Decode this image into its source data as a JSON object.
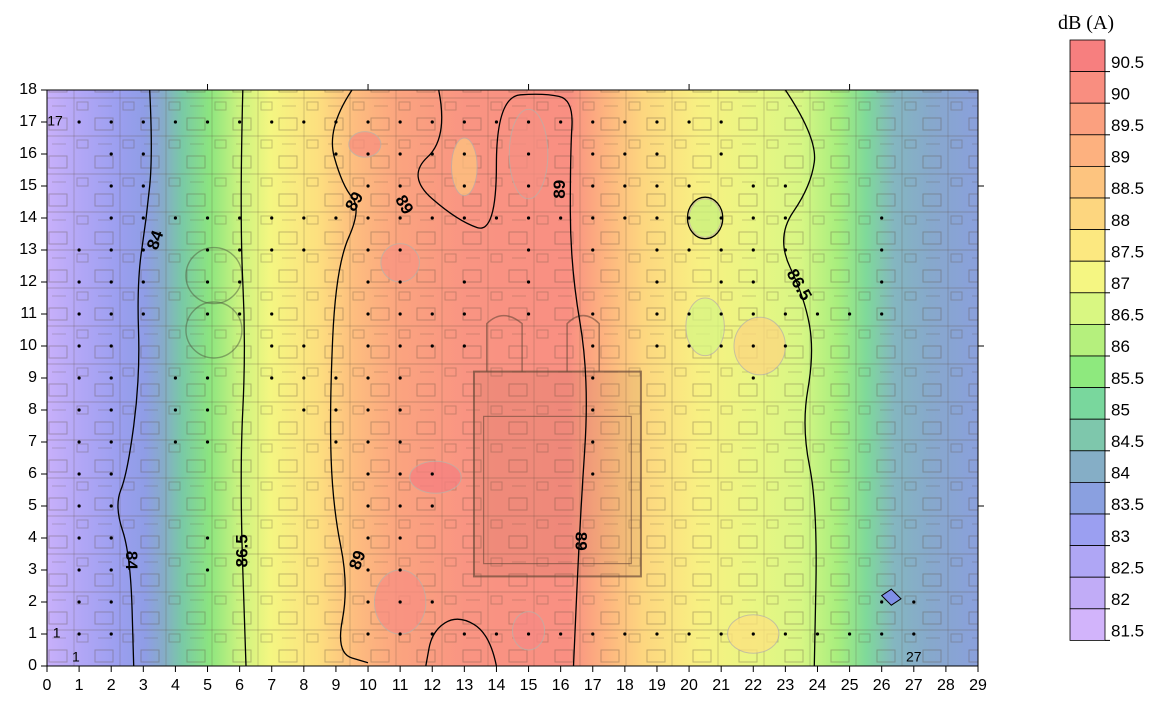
{
  "chart_data": {
    "type": "heatmap",
    "title": "",
    "colorbar_title": "dB (A)",
    "xlim": [
      0,
      29
    ],
    "ylim": [
      0,
      18
    ],
    "x_ticks": [
      0,
      1,
      2,
      3,
      4,
      5,
      6,
      7,
      8,
      9,
      10,
      11,
      12,
      13,
      14,
      15,
      16,
      17,
      18,
      19,
      20,
      21,
      22,
      23,
      24,
      25,
      26,
      27,
      28,
      29
    ],
    "y_ticks": [
      0,
      1,
      2,
      3,
      4,
      5,
      6,
      7,
      8,
      9,
      10,
      11,
      12,
      13,
      14,
      15,
      16,
      17,
      18
    ],
    "colorbar_levels": [
      {
        "label": "90.5",
        "color": "#f77f7f"
      },
      {
        "label": "90",
        "color": "#f98e80"
      },
      {
        "label": "89.5",
        "color": "#fba07f"
      },
      {
        "label": "89",
        "color": "#fdb17f"
      },
      {
        "label": "88.5",
        "color": "#fdc47f"
      },
      {
        "label": "88",
        "color": "#fdd67f"
      },
      {
        "label": "87.5",
        "color": "#fce880"
      },
      {
        "label": "87",
        "color": "#f5f682"
      },
      {
        "label": "86.5",
        "color": "#d9f782"
      },
      {
        "label": "86",
        "color": "#b5f07d"
      },
      {
        "label": "85.5",
        "color": "#8ee97e"
      },
      {
        "label": "85",
        "color": "#79d79d"
      },
      {
        "label": "84.5",
        "color": "#7ec7ac"
      },
      {
        "label": "84",
        "color": "#85aec6"
      },
      {
        "label": "83.5",
        "color": "#8aa0e0"
      },
      {
        "label": "83",
        "color": "#9b9ff1"
      },
      {
        "label": "82.5",
        "color": "#afa6f5"
      },
      {
        "label": "82",
        "color": "#c1acf7"
      },
      {
        "label": "81.5",
        "color": "#d2b4fb"
      }
    ],
    "contour_labels": [
      {
        "text": "84",
        "x": 3.4,
        "y": 13.3,
        "angle": -70
      },
      {
        "text": "84",
        "x": 2.6,
        "y": 3.3,
        "angle": 90
      },
      {
        "text": "86.5",
        "x": 6.1,
        "y": 3.6,
        "angle": -90
      },
      {
        "text": "89",
        "x": 9.6,
        "y": 14.5,
        "angle": -60
      },
      {
        "text": "89",
        "x": 11.1,
        "y": 14.4,
        "angle": 60
      },
      {
        "text": "89",
        "x": 9.7,
        "y": 3.3,
        "angle": -70
      },
      {
        "text": "89",
        "x": 16.0,
        "y": 14.9,
        "angle": -90
      },
      {
        "text": "89",
        "x": 16.6,
        "y": 3.9,
        "angle": 90
      },
      {
        "text": "86.5",
        "x": 23.4,
        "y": 11.9,
        "angle": 60
      }
    ],
    "point_labels": [
      {
        "text": "17",
        "x": 0.25,
        "y": 17.0
      },
      {
        "text": "1",
        "x": 0.3,
        "y": 1.0
      },
      {
        "text": "1",
        "x": 0.9,
        "y": 0.25
      },
      {
        "text": "27",
        "x": 27.0,
        "y": 0.25
      }
    ],
    "measurement_points": [
      [
        1,
        17
      ],
      [
        2,
        17
      ],
      [
        3,
        17
      ],
      [
        4,
        17
      ],
      [
        5,
        17
      ],
      [
        6,
        17
      ],
      [
        7,
        17
      ],
      [
        8,
        17
      ],
      [
        9,
        17
      ],
      [
        10,
        17
      ],
      [
        11,
        17
      ],
      [
        12,
        17
      ],
      [
        13,
        17
      ],
      [
        14,
        17
      ],
      [
        15,
        17
      ],
      [
        16,
        17
      ],
      [
        17,
        17
      ],
      [
        18,
        17
      ],
      [
        19,
        17
      ],
      [
        20,
        17
      ],
      [
        21,
        17
      ],
      [
        2,
        16
      ],
      [
        3,
        16
      ],
      [
        9,
        16
      ],
      [
        10,
        16
      ],
      [
        11,
        16
      ],
      [
        12,
        16
      ],
      [
        13,
        16
      ],
      [
        15,
        16
      ],
      [
        17,
        16
      ],
      [
        18,
        16
      ],
      [
        19,
        16
      ],
      [
        21,
        16
      ],
      [
        2,
        15
      ],
      [
        3,
        15
      ],
      [
        10,
        15
      ],
      [
        11,
        15
      ],
      [
        13,
        15
      ],
      [
        15,
        15
      ],
      [
        17,
        15
      ],
      [
        18,
        15
      ],
      [
        19,
        15
      ],
      [
        20,
        15
      ],
      [
        22,
        15
      ],
      [
        23,
        15
      ],
      [
        2,
        14
      ],
      [
        3,
        14
      ],
      [
        4,
        14
      ],
      [
        5,
        14
      ],
      [
        6,
        14
      ],
      [
        7,
        14
      ],
      [
        8,
        14
      ],
      [
        9,
        14
      ],
      [
        10,
        14
      ],
      [
        11,
        14
      ],
      [
        12,
        14
      ],
      [
        13,
        14
      ],
      [
        14,
        14
      ],
      [
        15,
        14
      ],
      [
        16,
        14
      ],
      [
        17,
        14
      ],
      [
        18,
        14
      ],
      [
        19,
        14
      ],
      [
        20,
        14
      ],
      [
        21,
        14
      ],
      [
        22,
        14
      ],
      [
        23,
        14
      ],
      [
        26,
        14
      ],
      [
        1,
        13
      ],
      [
        2,
        13
      ],
      [
        3,
        13
      ],
      [
        5,
        13
      ],
      [
        6,
        13
      ],
      [
        7,
        13
      ],
      [
        8,
        13
      ],
      [
        10,
        13
      ],
      [
        11,
        13
      ],
      [
        15,
        13
      ],
      [
        17,
        13
      ],
      [
        19,
        13
      ],
      [
        20,
        13
      ],
      [
        21,
        13
      ],
      [
        22,
        13
      ],
      [
        23,
        13
      ],
      [
        26,
        13
      ],
      [
        1,
        12
      ],
      [
        2,
        12
      ],
      [
        3,
        12
      ],
      [
        5,
        12
      ],
      [
        6,
        12
      ],
      [
        10,
        12
      ],
      [
        11,
        12
      ],
      [
        13,
        12
      ],
      [
        15,
        12
      ],
      [
        19,
        12
      ],
      [
        21,
        12
      ],
      [
        22,
        12
      ],
      [
        26,
        12
      ],
      [
        1,
        11
      ],
      [
        2,
        11
      ],
      [
        3,
        11
      ],
      [
        5,
        11
      ],
      [
        6,
        11
      ],
      [
        7,
        11
      ],
      [
        10,
        11
      ],
      [
        11,
        11
      ],
      [
        12,
        11
      ],
      [
        13,
        11
      ],
      [
        15,
        11
      ],
      [
        17,
        11
      ],
      [
        19,
        11
      ],
      [
        20,
        11
      ],
      [
        21,
        11
      ],
      [
        22,
        11
      ],
      [
        23,
        11
      ],
      [
        24,
        11
      ],
      [
        25,
        11
      ],
      [
        26,
        11
      ],
      [
        1,
        10
      ],
      [
        2,
        10
      ],
      [
        7,
        10
      ],
      [
        8,
        10
      ],
      [
        10,
        10
      ],
      [
        11,
        10
      ],
      [
        12,
        10
      ],
      [
        13,
        10
      ],
      [
        17,
        10
      ],
      [
        19,
        10
      ],
      [
        20,
        10
      ],
      [
        21,
        10
      ],
      [
        22,
        10
      ],
      [
        23,
        10
      ],
      [
        1,
        9
      ],
      [
        2,
        9
      ],
      [
        4,
        9
      ],
      [
        5,
        9
      ],
      [
        7,
        9
      ],
      [
        8,
        9
      ],
      [
        9,
        9
      ],
      [
        10,
        9
      ],
      [
        11,
        9
      ],
      [
        17,
        9
      ],
      [
        22,
        9
      ],
      [
        1,
        8
      ],
      [
        2,
        8
      ],
      [
        4,
        8
      ],
      [
        5,
        8
      ],
      [
        8,
        8
      ],
      [
        9,
        8
      ],
      [
        10,
        8
      ],
      [
        11,
        8
      ],
      [
        17,
        8
      ],
      [
        1,
        7
      ],
      [
        2,
        7
      ],
      [
        4,
        7
      ],
      [
        5,
        7
      ],
      [
        9,
        7
      ],
      [
        10,
        7
      ],
      [
        11,
        7
      ],
      [
        17,
        7
      ],
      [
        1,
        6
      ],
      [
        2,
        6
      ],
      [
        10,
        6
      ],
      [
        11,
        6
      ],
      [
        12,
        6
      ],
      [
        17,
        6
      ],
      [
        1,
        5
      ],
      [
        2,
        5
      ],
      [
        10,
        5
      ],
      [
        11,
        5
      ],
      [
        12,
        5
      ],
      [
        1,
        4
      ],
      [
        2,
        4
      ],
      [
        5,
        4
      ],
      [
        10,
        4
      ],
      [
        11,
        4
      ],
      [
        1,
        3
      ],
      [
        2,
        3
      ],
      [
        5,
        3
      ],
      [
        10,
        3
      ],
      [
        11,
        3
      ],
      [
        1,
        2
      ],
      [
        2,
        2
      ],
      [
        10,
        2
      ],
      [
        11,
        2
      ],
      [
        12,
        2
      ],
      [
        26,
        2
      ],
      [
        27,
        2
      ],
      [
        1,
        1
      ],
      [
        2,
        1
      ],
      [
        10,
        1
      ],
      [
        11,
        1
      ],
      [
        12,
        1
      ],
      [
        13,
        1
      ],
      [
        14,
        1
      ],
      [
        15,
        1
      ],
      [
        16,
        1
      ],
      [
        17,
        1
      ],
      [
        18,
        1
      ],
      [
        19,
        1
      ],
      [
        20,
        1
      ],
      [
        21,
        1
      ],
      [
        22,
        1
      ],
      [
        23,
        1
      ],
      [
        24,
        1
      ],
      [
        25,
        1
      ],
      [
        26,
        1
      ],
      [
        27,
        1
      ]
    ]
  }
}
